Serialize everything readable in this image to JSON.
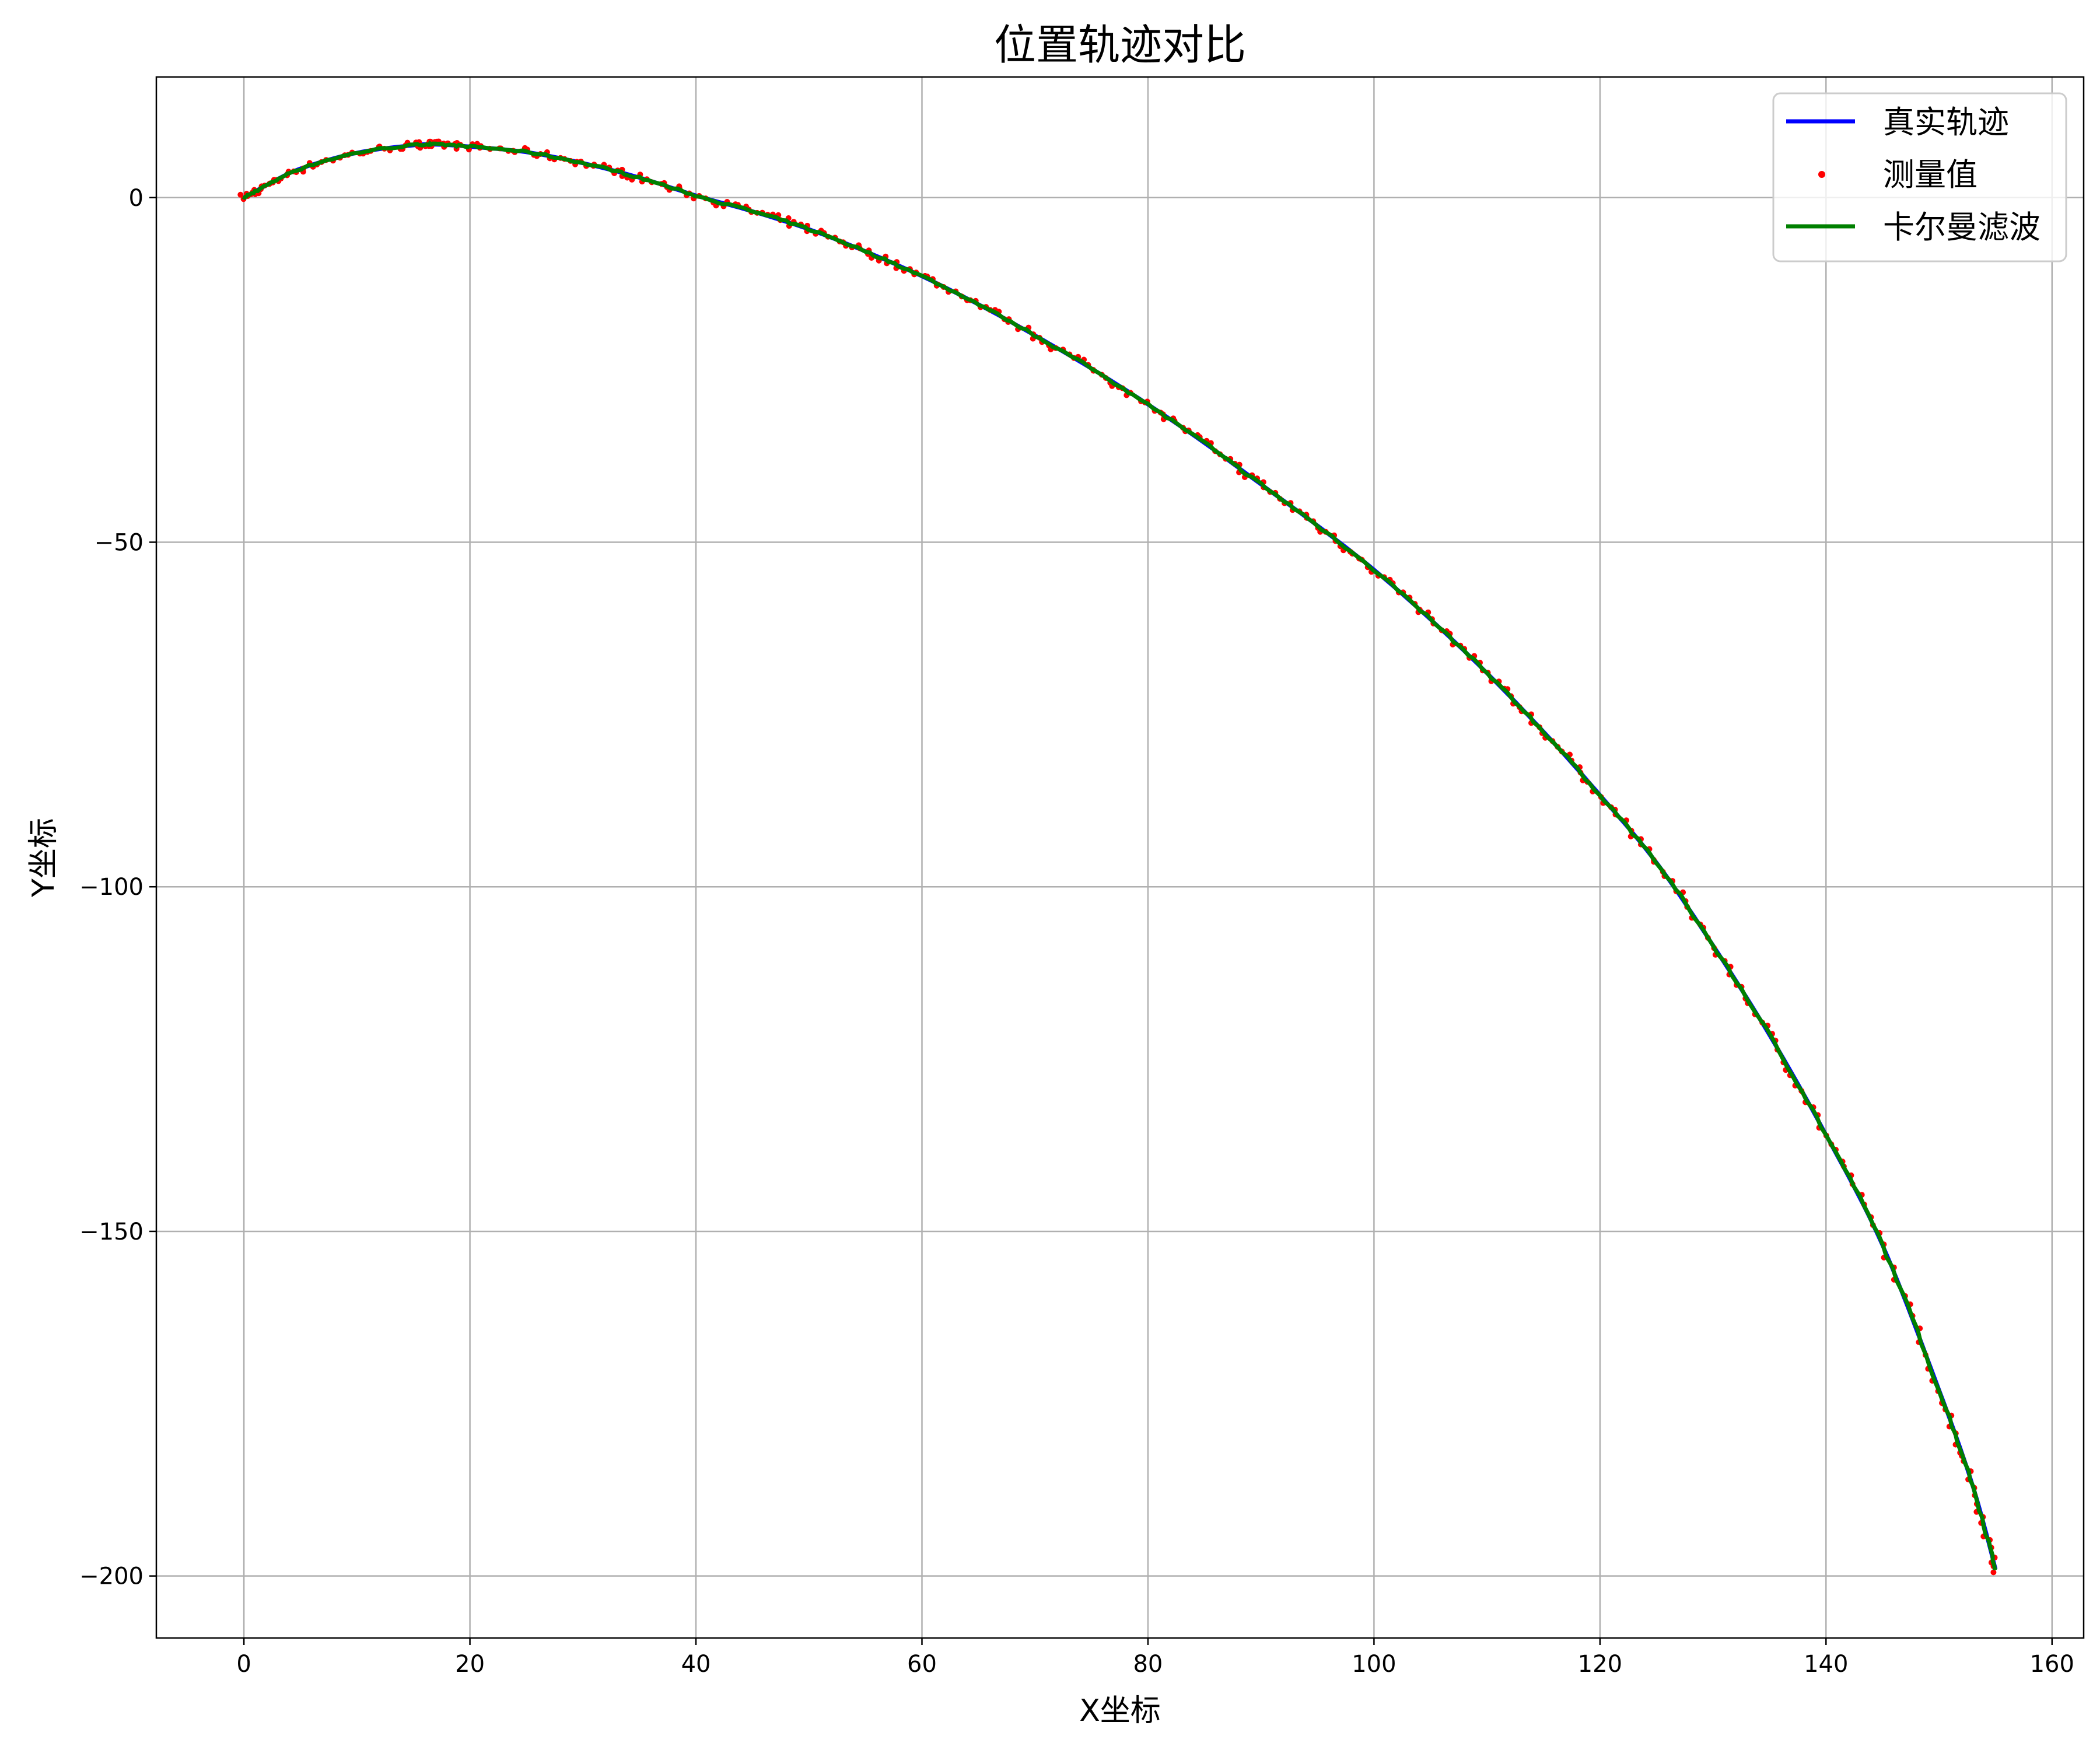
{
  "chart_data": {
    "type": "line",
    "title": "位置轨迹对比",
    "xlabel": "X坐标",
    "ylabel": "Y坐标",
    "xlim": [
      -7.75,
      162.8
    ],
    "ylim": [
      -209,
      17.5
    ],
    "xticks": [
      0,
      20,
      40,
      60,
      80,
      100,
      120,
      140,
      160
    ],
    "yticks": [
      0,
      -50,
      -100,
      -150,
      -200
    ],
    "ytick_labels": [
      "0",
      "−50",
      "−100",
      "−150",
      "−200"
    ],
    "grid": true,
    "legend_placement": "top-right",
    "series": [
      {
        "name": "真实轨迹",
        "style": "line",
        "color": "#0000ff",
        "points": [
          [
            0,
            0
          ],
          [
            2,
            1.8
          ],
          [
            5,
            4.2
          ],
          [
            10,
            6.5
          ],
          [
            15,
            7.6
          ],
          [
            17,
            7.7
          ],
          [
            20,
            7.4
          ],
          [
            25,
            6.6
          ],
          [
            30,
            5
          ],
          [
            35,
            2.9
          ],
          [
            40,
            0.3
          ],
          [
            45,
            -2
          ],
          [
            50,
            -4.6
          ],
          [
            55,
            -7.8
          ],
          [
            60,
            -11.4
          ],
          [
            65,
            -15.5
          ],
          [
            70,
            -20
          ],
          [
            75,
            -24.8
          ],
          [
            80,
            -30
          ],
          [
            85,
            -35.6
          ],
          [
            90,
            -41.6
          ],
          [
            95,
            -47.6
          ],
          [
            100,
            -54
          ],
          [
            105,
            -61.2
          ],
          [
            110,
            -69
          ],
          [
            115,
            -77.5
          ],
          [
            120,
            -86.7
          ],
          [
            125,
            -96.5
          ],
          [
            130,
            -108.5
          ],
          [
            135,
            -121.5
          ],
          [
            140,
            -136
          ],
          [
            145,
            -152
          ],
          [
            150,
            -173
          ],
          [
            153,
            -187
          ],
          [
            155,
            -199
          ]
        ]
      },
      {
        "name": "测量值",
        "style": "points",
        "color": "#ff0000"
      },
      {
        "name": "卡尔曼滤波",
        "style": "line",
        "color": "#008000"
      }
    ]
  }
}
